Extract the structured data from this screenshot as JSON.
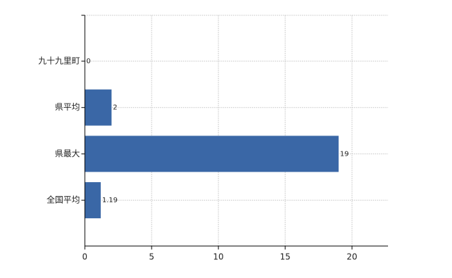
{
  "chart_data": {
    "type": "hbar",
    "categories": [
      "九十九里町",
      "県平均",
      "県最大",
      "全国平均"
    ],
    "values": [
      0,
      2,
      19,
      1.19
    ],
    "color": "#3a67a6",
    "xlim": [
      0,
      22.7
    ],
    "xticks": [
      0,
      5,
      10,
      15,
      20
    ],
    "grid": true
  }
}
